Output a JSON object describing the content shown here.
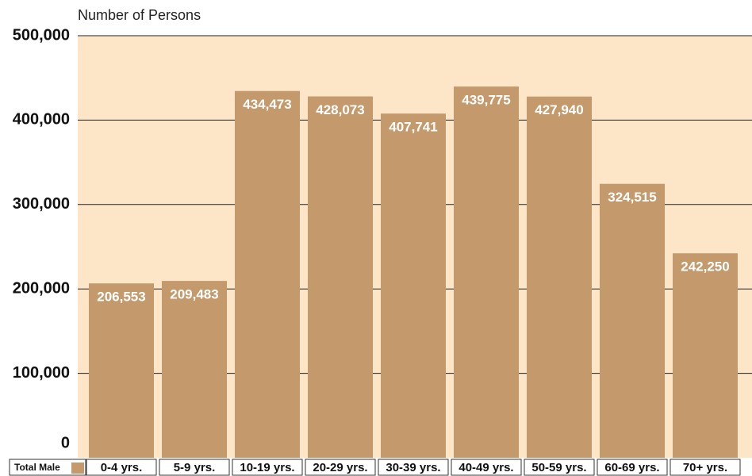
{
  "chart_data": {
    "type": "bar",
    "y_axis_label": "Number of Persons",
    "categories": [
      "0-4 yrs.",
      "5-9 yrs.",
      "10-19 yrs.",
      "20-29 yrs.",
      "30-39 yrs.",
      "40-49 yrs.",
      "50-59 yrs.",
      "60-69 yrs.",
      "70+ yrs."
    ],
    "series": [
      {
        "name": "Total Male",
        "color": "#c49a6c",
        "values": [
          206553,
          209483,
          434473,
          428073,
          407741,
          439775,
          427940,
          324515,
          242250
        ],
        "value_labels": [
          "206,553",
          "209,483",
          "434,473",
          "428,073",
          "407,741",
          "439,775",
          "427,940",
          "324,515",
          "242,250"
        ]
      }
    ],
    "ylim": [
      0,
      500000
    ],
    "yticks": [
      0,
      {
        "value": 100000,
        "label": "100,000"
      },
      {
        "value": 200000,
        "label": "200,000"
      },
      {
        "value": 300000,
        "label": "300,000"
      },
      {
        "value": 400000,
        "label": "400,000"
      },
      {
        "value": 500000,
        "label": "500,000"
      }
    ],
    "grid": true
  }
}
